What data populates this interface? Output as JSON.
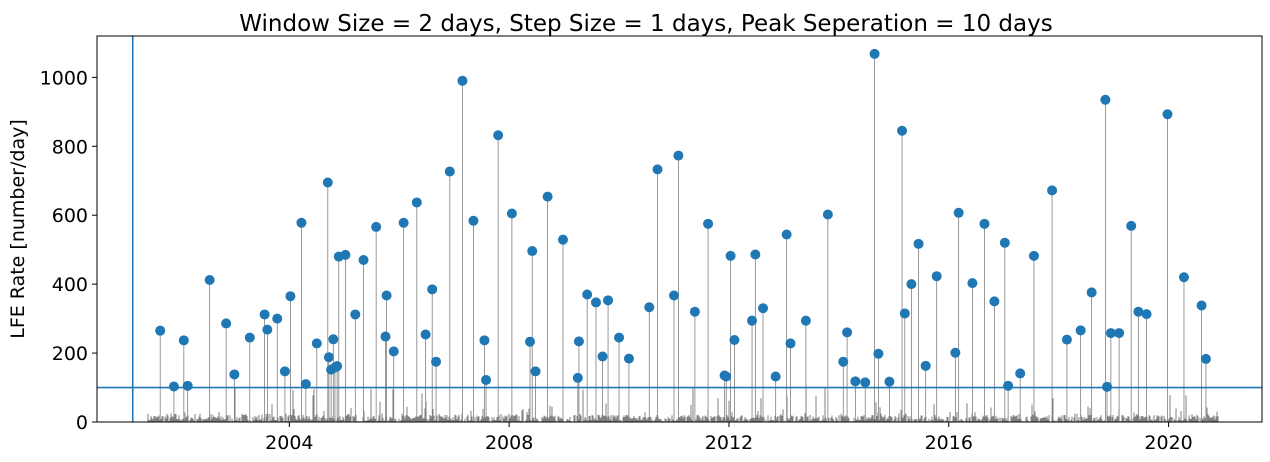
{
  "chart_data": {
    "type": "scatter",
    "title": "Window Size = 2 days, Step Size = 1 days, Peak Seperation = 10 days",
    "xlabel": "",
    "ylabel": "LFE Rate [number/day]",
    "xlim": [
      2000.5,
      2021.7
    ],
    "ylim": [
      0,
      1120
    ],
    "x_ticks": [
      2004,
      2008,
      2012,
      2016,
      2020
    ],
    "x_tick_labels": [
      "2004",
      "2008",
      "2012",
      "2016",
      "2020"
    ],
    "y_ticks": [
      0,
      200,
      400,
      600,
      800,
      1000
    ],
    "y_tick_labels": [
      "0",
      "200",
      "400",
      "600",
      "800",
      "1000"
    ],
    "grid": false,
    "threshold_line_y": 100,
    "start_line_x": 2001.15,
    "colors": {
      "marker": "#1f77b4",
      "stem": "#7f7f7f",
      "background_series": "#000000",
      "reference_lines": "#1f77b4"
    },
    "series": [
      {
        "values": [
          {
            "x": 2001.65,
            "y": 265
          },
          {
            "x": 2001.9,
            "y": 103
          },
          {
            "x": 2002.08,
            "y": 237
          },
          {
            "x": 2002.15,
            "y": 105
          },
          {
            "x": 2002.55,
            "y": 412
          },
          {
            "x": 2002.85,
            "y": 286
          },
          {
            "x": 2003.0,
            "y": 138
          },
          {
            "x": 2003.28,
            "y": 245
          },
          {
            "x": 2003.55,
            "y": 312
          },
          {
            "x": 2003.6,
            "y": 268
          },
          {
            "x": 2003.78,
            "y": 300
          },
          {
            "x": 2003.92,
            "y": 147
          },
          {
            "x": 2004.02,
            "y": 365
          },
          {
            "x": 2004.22,
            "y": 578
          },
          {
            "x": 2004.3,
            "y": 110
          },
          {
            "x": 2004.5,
            "y": 228
          },
          {
            "x": 2004.7,
            "y": 695
          },
          {
            "x": 2004.72,
            "y": 188
          },
          {
            "x": 2004.76,
            "y": 152
          },
          {
            "x": 2004.8,
            "y": 240
          },
          {
            "x": 2004.83,
            "y": 158
          },
          {
            "x": 2004.87,
            "y": 162
          },
          {
            "x": 2004.9,
            "y": 480
          },
          {
            "x": 2005.02,
            "y": 485
          },
          {
            "x": 2005.2,
            "y": 312
          },
          {
            "x": 2005.35,
            "y": 470
          },
          {
            "x": 2005.58,
            "y": 566
          },
          {
            "x": 2005.75,
            "y": 248
          },
          {
            "x": 2005.77,
            "y": 367
          },
          {
            "x": 2005.9,
            "y": 205
          },
          {
            "x": 2006.08,
            "y": 578
          },
          {
            "x": 2006.32,
            "y": 637
          },
          {
            "x": 2006.48,
            "y": 254
          },
          {
            "x": 2006.6,
            "y": 385
          },
          {
            "x": 2006.67,
            "y": 175
          },
          {
            "x": 2006.92,
            "y": 727
          },
          {
            "x": 2007.15,
            "y": 990
          },
          {
            "x": 2007.35,
            "y": 584
          },
          {
            "x": 2007.55,
            "y": 237
          },
          {
            "x": 2007.58,
            "y": 122
          },
          {
            "x": 2007.8,
            "y": 832
          },
          {
            "x": 2008.05,
            "y": 605
          },
          {
            "x": 2008.38,
            "y": 233
          },
          {
            "x": 2008.42,
            "y": 496
          },
          {
            "x": 2008.48,
            "y": 147
          },
          {
            "x": 2008.7,
            "y": 654
          },
          {
            "x": 2008.98,
            "y": 529
          },
          {
            "x": 2009.25,
            "y": 128
          },
          {
            "x": 2009.27,
            "y": 234
          },
          {
            "x": 2009.42,
            "y": 370
          },
          {
            "x": 2009.58,
            "y": 347
          },
          {
            "x": 2009.7,
            "y": 190
          },
          {
            "x": 2009.8,
            "y": 353
          },
          {
            "x": 2010.0,
            "y": 245
          },
          {
            "x": 2010.18,
            "y": 184
          },
          {
            "x": 2010.55,
            "y": 333
          },
          {
            "x": 2010.7,
            "y": 733
          },
          {
            "x": 2011.0,
            "y": 367
          },
          {
            "x": 2011.08,
            "y": 773
          },
          {
            "x": 2011.38,
            "y": 320
          },
          {
            "x": 2011.62,
            "y": 575
          },
          {
            "x": 2011.92,
            "y": 135
          },
          {
            "x": 2011.95,
            "y": 132
          },
          {
            "x": 2012.03,
            "y": 482
          },
          {
            "x": 2012.1,
            "y": 238
          },
          {
            "x": 2012.42,
            "y": 294
          },
          {
            "x": 2012.48,
            "y": 486
          },
          {
            "x": 2012.62,
            "y": 330
          },
          {
            "x": 2012.85,
            "y": 132
          },
          {
            "x": 2013.05,
            "y": 544
          },
          {
            "x": 2013.12,
            "y": 228
          },
          {
            "x": 2013.4,
            "y": 294
          },
          {
            "x": 2013.8,
            "y": 602
          },
          {
            "x": 2014.08,
            "y": 175
          },
          {
            "x": 2014.15,
            "y": 260
          },
          {
            "x": 2014.3,
            "y": 118
          },
          {
            "x": 2014.48,
            "y": 115
          },
          {
            "x": 2014.65,
            "y": 1068
          },
          {
            "x": 2014.72,
            "y": 198
          },
          {
            "x": 2014.92,
            "y": 117
          },
          {
            "x": 2015.15,
            "y": 845
          },
          {
            "x": 2015.2,
            "y": 315
          },
          {
            "x": 2015.32,
            "y": 400
          },
          {
            "x": 2015.45,
            "y": 517
          },
          {
            "x": 2015.58,
            "y": 163
          },
          {
            "x": 2015.78,
            "y": 423
          },
          {
            "x": 2016.12,
            "y": 201
          },
          {
            "x": 2016.18,
            "y": 607
          },
          {
            "x": 2016.43,
            "y": 403
          },
          {
            "x": 2016.65,
            "y": 575
          },
          {
            "x": 2016.83,
            "y": 350
          },
          {
            "x": 2017.02,
            "y": 520
          },
          {
            "x": 2017.08,
            "y": 105
          },
          {
            "x": 2017.3,
            "y": 141
          },
          {
            "x": 2017.55,
            "y": 482
          },
          {
            "x": 2017.88,
            "y": 672
          },
          {
            "x": 2018.15,
            "y": 239
          },
          {
            "x": 2018.4,
            "y": 266
          },
          {
            "x": 2018.6,
            "y": 376
          },
          {
            "x": 2018.85,
            "y": 935
          },
          {
            "x": 2018.88,
            "y": 102
          },
          {
            "x": 2018.95,
            "y": 258
          },
          {
            "x": 2019.1,
            "y": 258
          },
          {
            "x": 2019.32,
            "y": 569
          },
          {
            "x": 2019.45,
            "y": 320
          },
          {
            "x": 2019.6,
            "y": 313
          },
          {
            "x": 2019.98,
            "y": 893
          },
          {
            "x": 2020.28,
            "y": 420
          },
          {
            "x": 2020.6,
            "y": 338
          },
          {
            "x": 2020.68,
            "y": 183
          }
        ]
      }
    ]
  }
}
